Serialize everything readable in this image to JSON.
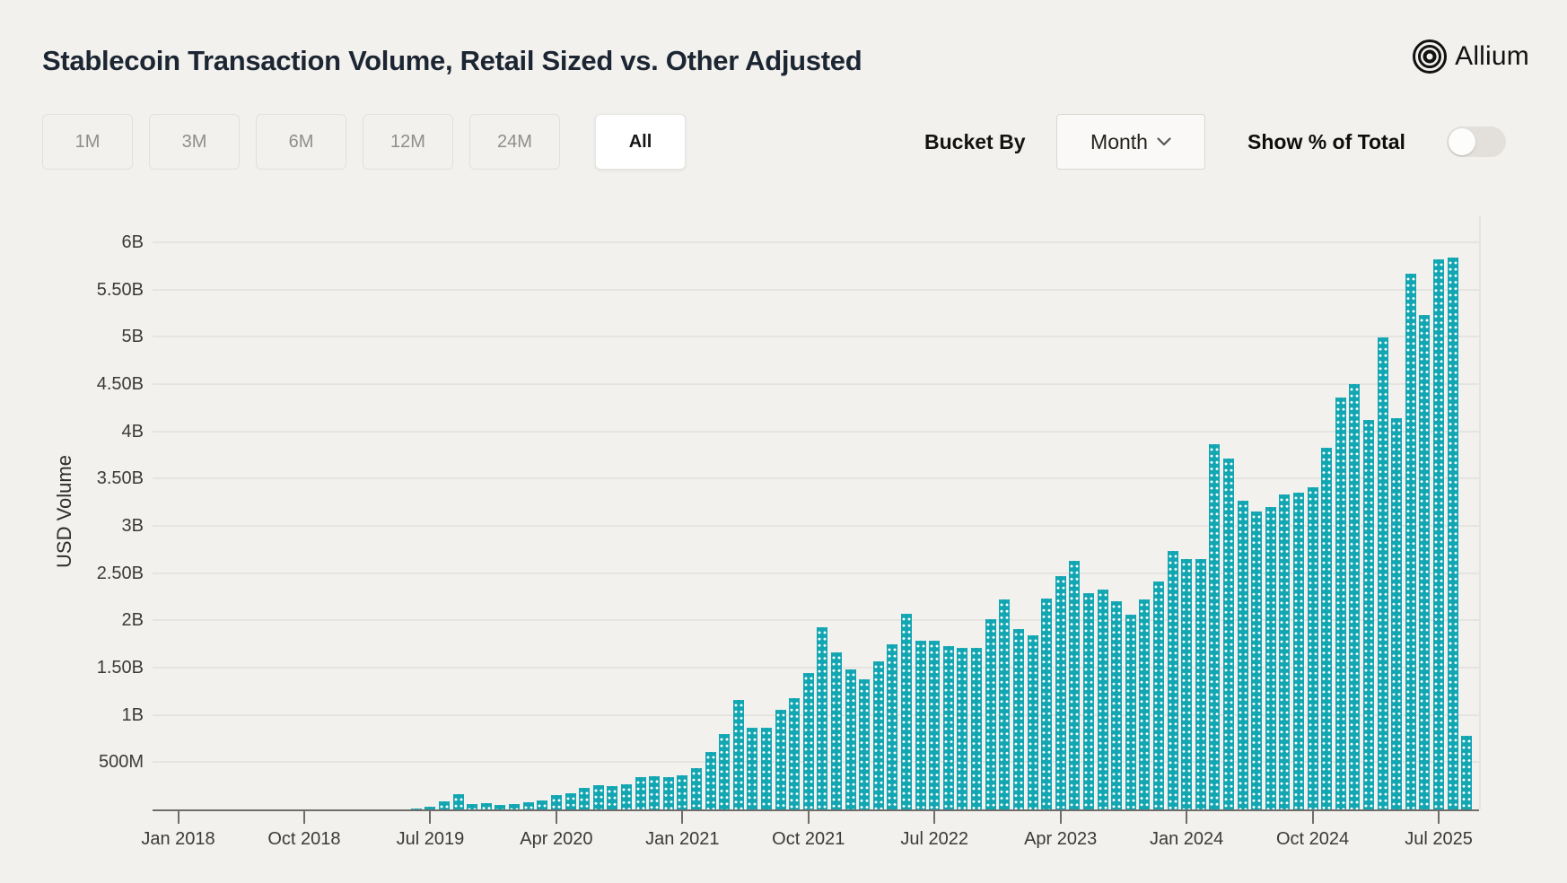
{
  "header": {
    "title": "Stablecoin Transaction Volume, Retail Sized vs. Other Adjusted",
    "brand": "Allium"
  },
  "controls": {
    "ranges": [
      "1M",
      "3M",
      "6M",
      "12M",
      "24M",
      "All"
    ],
    "active_range": "All",
    "bucket_by_label": "Bucket By",
    "bucket_value": "Month",
    "toggle_label": "Show % of Total",
    "toggle_on": false
  },
  "chart_data": {
    "type": "bar",
    "title": "Stablecoin Transaction Volume, Retail Sized vs. Other Adjusted",
    "xlabel": "",
    "ylabel": "USD Volume",
    "unit": "USD billions",
    "bar_color": "#12a6b2",
    "grid": true,
    "legend": false,
    "ylim": [
      0,
      6.2
    ],
    "ytick_step_billions": 0.5,
    "ytick_labels": [
      "500M",
      "1B",
      "1.50B",
      "2B",
      "2.50B",
      "3B",
      "3.50B",
      "4B",
      "4.50B",
      "5B",
      "5.50B",
      "6B"
    ],
    "xtick_labels": [
      "Jan 2018",
      "Oct 2018",
      "Jul 2019",
      "Apr 2020",
      "Jan 2021",
      "Oct 2021",
      "Jul 2022",
      "Apr 2023",
      "Jan 2024",
      "Oct 2024",
      "Jul 2025"
    ],
    "xtick_month_indices": [
      0,
      9,
      18,
      27,
      36,
      45,
      54,
      63,
      72,
      81,
      90
    ],
    "months": [
      "Jan 2018",
      "Feb 2018",
      "Mar 2018",
      "Apr 2018",
      "May 2018",
      "Jun 2018",
      "Jul 2018",
      "Aug 2018",
      "Sep 2018",
      "Oct 2018",
      "Nov 2018",
      "Dec 2018",
      "Jan 2019",
      "Feb 2019",
      "Mar 2019",
      "Apr 2019",
      "May 2019",
      "Jun 2019",
      "Jul 2019",
      "Aug 2019",
      "Sep 2019",
      "Oct 2019",
      "Nov 2019",
      "Dec 2019",
      "Jan 2020",
      "Feb 2020",
      "Mar 2020",
      "Apr 2020",
      "May 2020",
      "Jun 2020",
      "Jul 2020",
      "Aug 2020",
      "Sep 2020",
      "Oct 2020",
      "Nov 2020",
      "Dec 2020",
      "Jan 2021",
      "Feb 2021",
      "Mar 2021",
      "Apr 2021",
      "May 2021",
      "Jun 2021",
      "Jul 2021",
      "Aug 2021",
      "Sep 2021",
      "Oct 2021",
      "Nov 2021",
      "Dec 2021",
      "Jan 2022",
      "Feb 2022",
      "Mar 2022",
      "Apr 2022",
      "May 2022",
      "Jun 2022",
      "Jul 2022",
      "Aug 2022",
      "Sep 2022",
      "Oct 2022",
      "Nov 2022",
      "Dec 2022",
      "Jan 2023",
      "Feb 2023",
      "Mar 2023",
      "Apr 2023",
      "May 2023",
      "Jun 2023",
      "Jul 2023",
      "Aug 2023",
      "Sep 2023",
      "Oct 2023",
      "Nov 2023",
      "Dec 2023",
      "Jan 2024",
      "Feb 2024",
      "Mar 2024",
      "Apr 2024",
      "May 2024",
      "Jun 2024",
      "Jul 2024",
      "Aug 2024",
      "Sep 2024",
      "Oct 2024",
      "Nov 2024",
      "Dec 2024",
      "Jan 2025",
      "Feb 2025",
      "Mar 2025",
      "Apr 2025",
      "May 2025",
      "Jun 2025",
      "Jul 2025",
      "Aug 2025",
      "Sep 2025"
    ],
    "values_billions": [
      0.001,
      0.001,
      0.001,
      0.001,
      0.001,
      0.002,
      0.002,
      0.002,
      0.002,
      0.002,
      0.003,
      0.003,
      0.003,
      0.003,
      0.004,
      0.004,
      0.005,
      0.01,
      0.03,
      0.09,
      0.16,
      0.06,
      0.065,
      0.05,
      0.06,
      0.075,
      0.1,
      0.15,
      0.17,
      0.23,
      0.26,
      0.25,
      0.27,
      0.34,
      0.35,
      0.34,
      0.36,
      0.44,
      0.61,
      0.8,
      1.16,
      0.86,
      0.86,
      1.05,
      1.18,
      1.44,
      1.93,
      1.66,
      1.48,
      1.38,
      1.57,
      1.75,
      2.07,
      1.79,
      1.79,
      1.73,
      1.71,
      1.71,
      2.01,
      2.22,
      1.91,
      1.84,
      2.23,
      2.47,
      2.63,
      2.29,
      2.33,
      2.2,
      2.06,
      2.22,
      2.41,
      2.73,
      2.65,
      2.65,
      3.86,
      3.71,
      3.27,
      3.15,
      3.2,
      3.33,
      3.35,
      3.41,
      3.83,
      4.36,
      4.5,
      4.12,
      4.99,
      4.14,
      5.67,
      5.23,
      5.82,
      5.84,
      0.78
    ]
  }
}
